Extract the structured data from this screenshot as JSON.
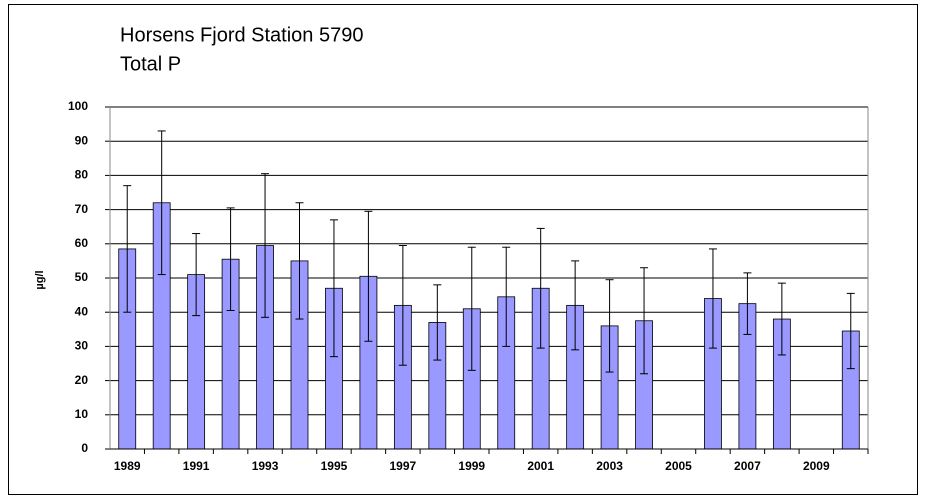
{
  "chart_data": {
    "type": "bar",
    "title": "Horsens Fjord Station 5790",
    "subtitle": "Total P",
    "y_label": "µg/l",
    "categories": [
      "1989",
      null,
      "1991",
      null,
      "1993",
      null,
      "1995",
      null,
      "1997",
      null,
      "1999",
      null,
      "2001",
      null,
      "2003",
      null,
      "2005",
      null,
      "2007",
      null,
      "2009",
      null
    ],
    "values": [
      58.5,
      72,
      51,
      55.5,
      59.5,
      55,
      47,
      50.5,
      42,
      37,
      41,
      44.5,
      47,
      42,
      36,
      37.5,
      null,
      44,
      42.5,
      38,
      null,
      34.5
    ],
    "errors": [
      18.5,
      21,
      12,
      15,
      21,
      17,
      20,
      19,
      17.5,
      11,
      18,
      14.5,
      17.5,
      13,
      13.5,
      15.5,
      null,
      14.5,
      9,
      10.5,
      null,
      11
    ],
    "color": "#9999ff",
    "ylim": [
      0,
      100
    ],
    "yticks": [
      0,
      10,
      20,
      30,
      40,
      50,
      60,
      70,
      80,
      90,
      100
    ],
    "grid": true
  }
}
